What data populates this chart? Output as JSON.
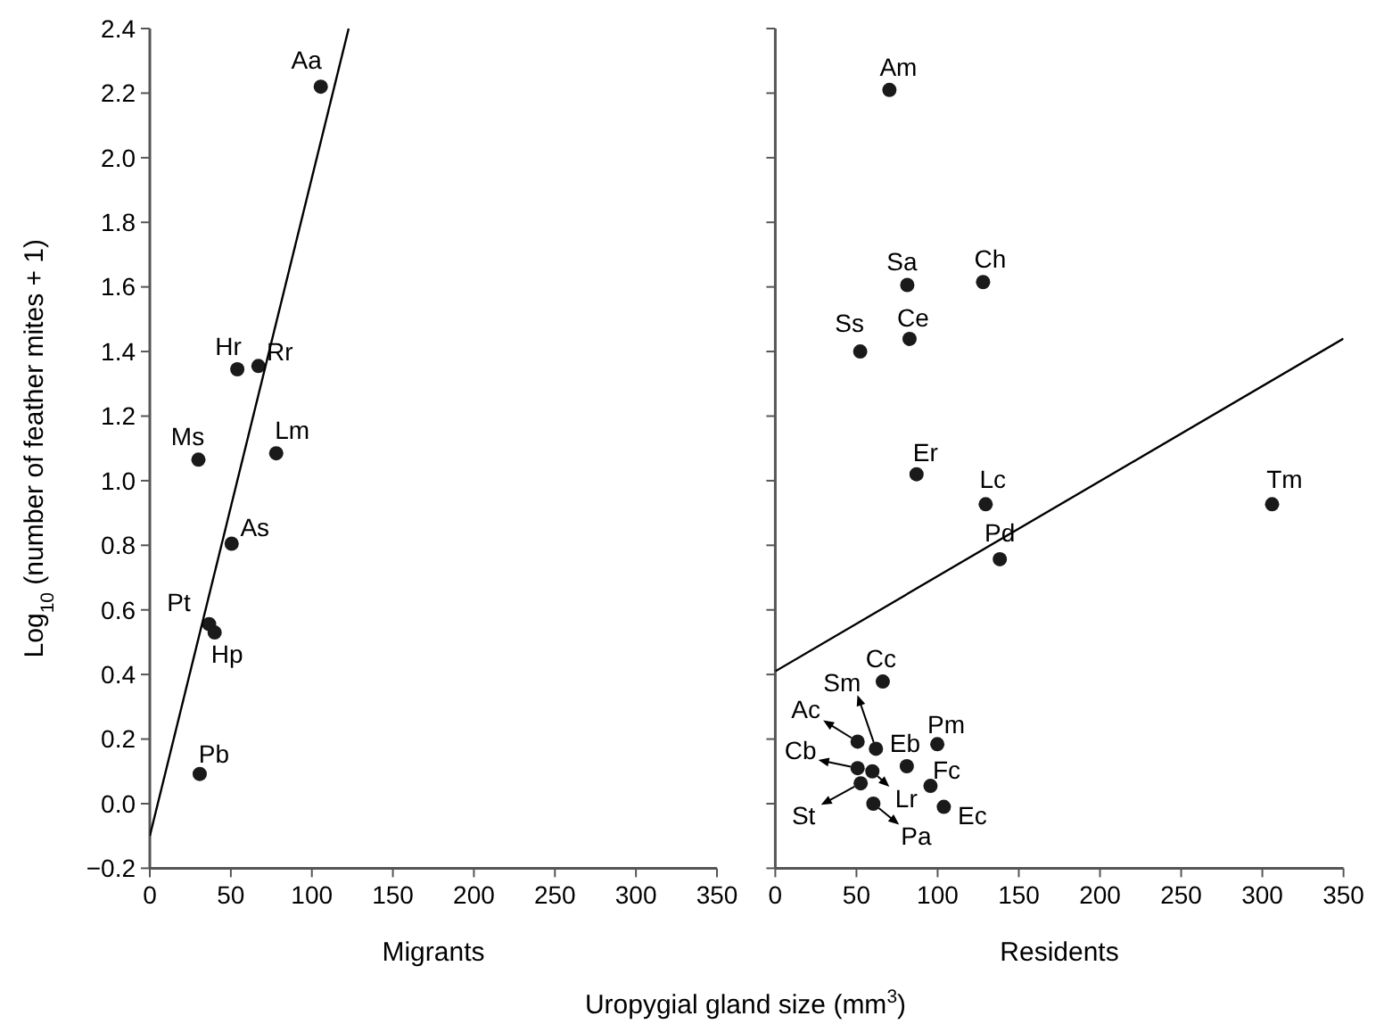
{
  "chart_data": [
    {
      "type": "scatter",
      "xlabel": "Migrants",
      "ylabel": "Log$_{10}$ (number of feather mites + 1)",
      "grid": false,
      "xlim": [
        0,
        350
      ],
      "xticks": [
        0,
        50,
        100,
        150,
        200,
        250,
        300,
        350
      ],
      "ylim": [
        -0.2,
        2.4
      ],
      "yticks": [
        {
          "value": -0.2,
          "label": "−0.2"
        },
        {
          "value": 0,
          "label": "0.0"
        },
        {
          "value": 0.2,
          "label": "0.2"
        },
        {
          "value": 0.4,
          "label": "0.4"
        },
        {
          "value": 0.6,
          "label": "0.6"
        },
        {
          "value": 0.8,
          "label": "0.8"
        },
        {
          "value": 1,
          "label": "1.0"
        },
        {
          "value": 1.2,
          "label": "1.2"
        },
        {
          "value": 1.4,
          "label": "1.4"
        },
        {
          "value": 1.6,
          "label": "1.6"
        },
        {
          "value": 1.8,
          "label": "1.8"
        },
        {
          "value": 2,
          "label": "2.0"
        },
        {
          "value": 2.2,
          "label": "2.2"
        },
        {
          "value": 2.4,
          "label": "2.4"
        }
      ],
      "series": [
        {
          "marker": "circle",
          "color": "#1a1a1a",
          "x": [
            105.5,
            54,
            67,
            30,
            78,
            50.5,
            36.6,
            40,
            30.8
          ],
          "values": [
            2.22,
            1.345,
            1.355,
            1.065,
            1.085,
            0.805,
            0.556,
            0.53,
            0.092
          ]
        },
        {
          "type": "line",
          "marker": "none",
          "color": "#000000",
          "x": [
            0,
            122.7
          ],
          "values": [
            -0.1,
            2.4
          ]
        }
      ],
      "annotations": [
        {
          "text": "Aa",
          "x": 105.5,
          "y": 2.22
        },
        {
          "text": "Hr",
          "x": 54,
          "y": 1.345
        },
        {
          "text": "Rr",
          "x": 67,
          "y": 1.355
        },
        {
          "text": "Ms",
          "x": 30,
          "y": 1.065
        },
        {
          "text": "Lm",
          "x": 78,
          "y": 1.085
        },
        {
          "text": "As",
          "x": 50.5,
          "y": 0.805
        },
        {
          "text": "Pt",
          "x": 36.6,
          "y": 0.556
        },
        {
          "text": "Hp",
          "x": 40,
          "y": 0.53
        },
        {
          "text": "Pb",
          "x": 30.8,
          "y": 0.092
        },
        "Uropygial gland size (mm$^{3}$)"
      ]
    },
    {
      "type": "scatter",
      "xlabel": "Residents",
      "grid": false,
      "tick_labels": "x",
      "xlim": [
        0,
        350
      ],
      "xticks": [
        0,
        50,
        100,
        150,
        200,
        250,
        300,
        350
      ],
      "ylim": [
        -0.2,
        2.4
      ],
      "yticks": [
        {
          "value": -0.2,
          "label": null
        },
        {
          "value": 0,
          "label": null
        },
        {
          "value": 0.2,
          "label": null
        },
        {
          "value": 0.4,
          "label": null
        },
        {
          "value": 0.6,
          "label": null
        },
        {
          "value": 0.8,
          "label": null
        },
        {
          "value": 1,
          "label": null
        },
        {
          "value": 1.2,
          "label": null
        },
        {
          "value": 1.4,
          "label": null
        },
        {
          "value": 1.6,
          "label": null
        },
        {
          "value": 1.8,
          "label": null
        },
        {
          "value": 2,
          "label": null
        },
        {
          "value": 2.2,
          "label": null
        },
        {
          "value": 2.4,
          "label": null
        }
      ],
      "series": [
        {
          "marker": "circle",
          "color": "#1a1a1a",
          "x": [
            70.3,
            81.3,
            128,
            52.3,
            82.7,
            87,
            129.6,
            306,
            138.3,
            66.2,
            62,
            50.7,
            81,
            99.8,
            50.7,
            59.8,
            95.6,
            52.6,
            60.4,
            103.8
          ],
          "values": [
            2.21,
            1.606,
            1.615,
            1.4,
            1.439,
            1.02,
            0.927,
            0.927,
            0.757,
            0.378,
            0.17,
            0.192,
            0.116,
            0.184,
            0.11,
            0.1,
            0.055,
            0.063,
            0,
            -0.01
          ]
        },
        {
          "type": "line",
          "marker": "none",
          "color": "#000000",
          "x": [
            0,
            350
          ],
          "values": [
            0.41,
            1.44
          ]
        }
      ],
      "annotations": [
        {
          "text": "Am",
          "x": 70.3,
          "y": 2.21
        },
        {
          "text": "Sa",
          "x": 81.3,
          "y": 1.606
        },
        {
          "text": "Ch",
          "x": 128,
          "y": 1.615
        },
        {
          "text": "Ss",
          "x": 52.3,
          "y": 1.4
        },
        {
          "text": "Ce",
          "x": 82.7,
          "y": 1.439
        },
        {
          "text": "Er",
          "x": 87,
          "y": 1.02
        },
        {
          "text": "Lc",
          "x": 129.6,
          "y": 0.927
        },
        {
          "text": "Tm",
          "x": 306,
          "y": 0.927
        },
        {
          "text": "Pd",
          "x": 138.3,
          "y": 0.757
        },
        {
          "text": "Cc",
          "x": 66.2,
          "y": 0.378
        },
        {
          "text": "Sm",
          "x": 62,
          "y": 0.17
        },
        {
          "text": "Ac",
          "x": 50.7,
          "y": 0.192
        },
        {
          "text": "Eb",
          "x": 81,
          "y": 0.116
        },
        {
          "text": "Pm",
          "x": 99.8,
          "y": 0.184
        },
        {
          "text": "Cb",
          "x": 50.7,
          "y": 0.11
        },
        {
          "text": "Lr",
          "x": 59.8,
          "y": 0.1
        },
        {
          "text": "Fc",
          "x": 95.6,
          "y": 0.055
        },
        {
          "text": "St",
          "x": 52.6,
          "y": 0.063
        },
        {
          "text": "Pa",
          "x": 60.4,
          "y": 0
        },
        {
          "text": "Ec",
          "x": 103.8,
          "y": -0.01
        }
      ]
    }
  ]
}
